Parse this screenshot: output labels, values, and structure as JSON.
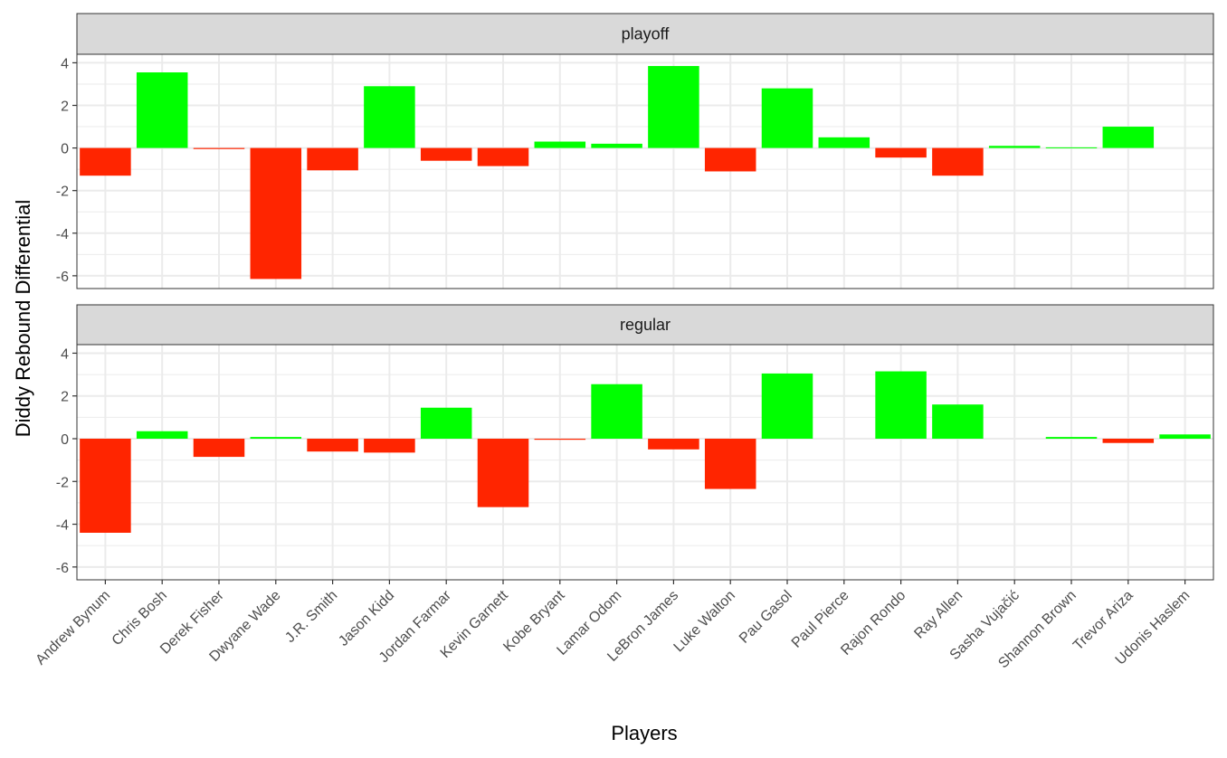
{
  "chart_data": {
    "type": "bar",
    "xlabel": "Players",
    "ylabel": "Diddy Rebound Differential",
    "ylim": [
      -6.6,
      4.4
    ],
    "yticks": [
      -6,
      -4,
      -2,
      0,
      2,
      4
    ],
    "grid": true,
    "legend": "none",
    "colors": {
      "positive": "#00FF00",
      "negative": "#FF2500",
      "strip_bg": "#D9D9D9",
      "grid": "#EBEBEB"
    },
    "categories": [
      "Andrew Bynum",
      "Chris Bosh",
      "Derek Fisher",
      "Dwyane Wade",
      "J.R. Smith",
      "Jason Kidd",
      "Jordan Farmar",
      "Kevin Garnett",
      "Kobe Bryant",
      "Lamar Odom",
      "LeBron James",
      "Luke Walton",
      "Pau Gasol",
      "Paul Pierce",
      "Rajon Rondo",
      "Ray Allen",
      "Sasha Vujačić",
      "Shannon Brown",
      "Trevor Ariza",
      "Udonis Haslem"
    ],
    "facets": [
      {
        "label": "playoff",
        "values": [
          -1.3,
          3.55,
          -0.05,
          -6.15,
          -1.05,
          2.9,
          -0.6,
          -0.85,
          0.3,
          0.2,
          3.85,
          -1.1,
          2.8,
          0.5,
          -0.45,
          -1.3,
          0.1,
          0.03,
          1.0,
          null
        ]
      },
      {
        "label": "regular",
        "values": [
          -4.4,
          0.35,
          -0.85,
          0.08,
          -0.6,
          -0.65,
          1.45,
          -3.2,
          -0.05,
          2.55,
          -0.5,
          -2.35,
          3.05,
          null,
          3.15,
          1.6,
          null,
          0.08,
          -0.2,
          0.2
        ]
      }
    ]
  }
}
